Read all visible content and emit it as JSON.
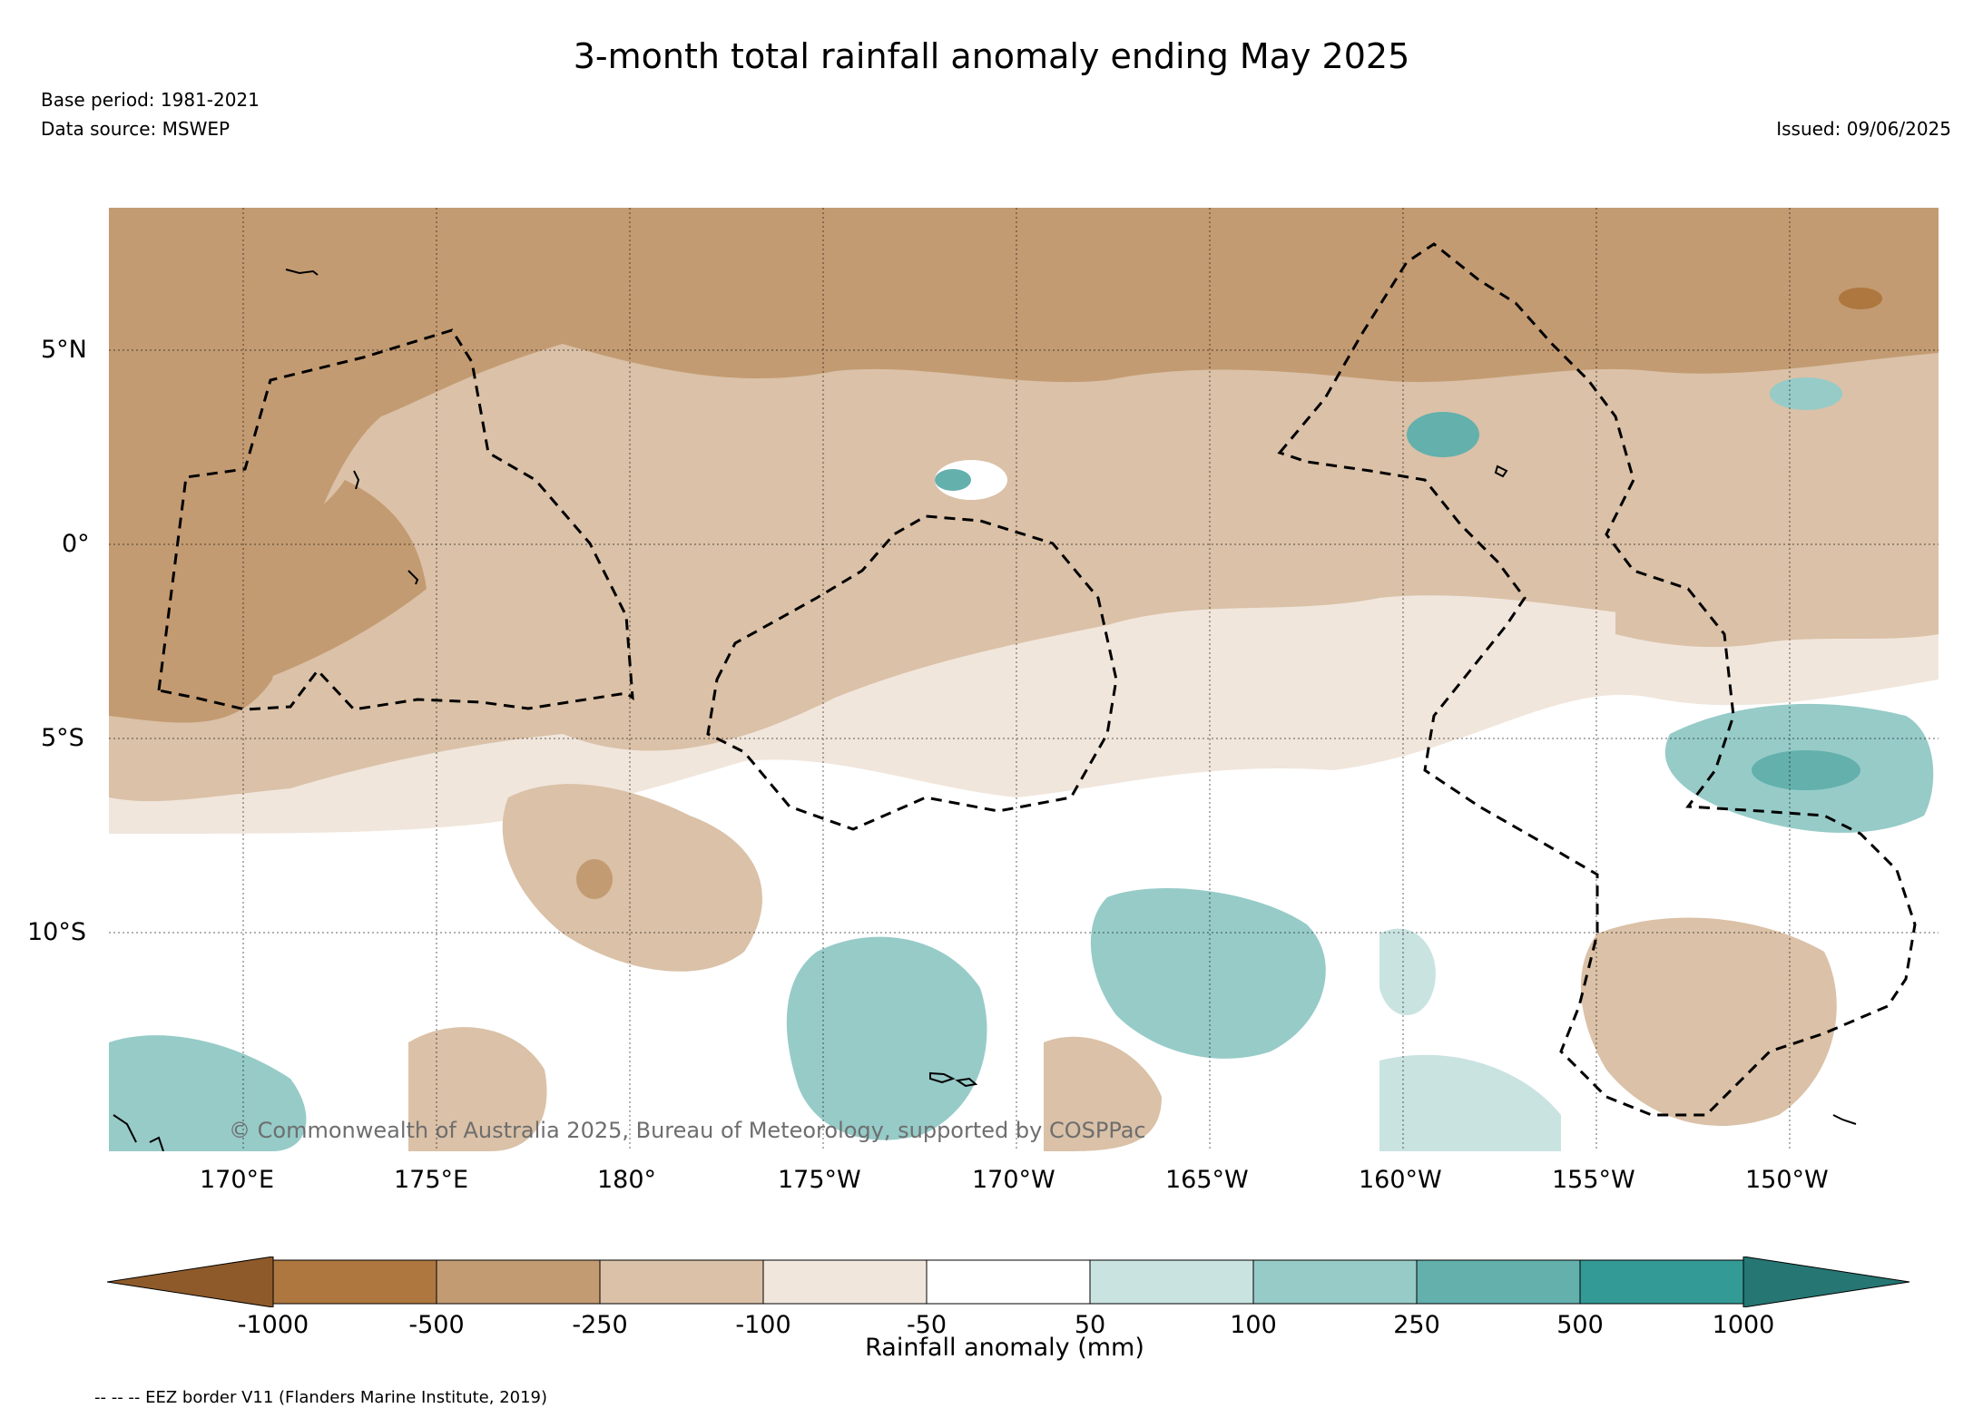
{
  "title": "3-month total rainfall anomaly ending May 2025",
  "base_period": "Base period: 1981-2021",
  "data_source": "Data source: MSWEP",
  "issued": "Issued: 09/06/2025",
  "credit": "© Commonwealth of Australia 2025, Bureau of Meteorology, supported by COSPPac",
  "map": {
    "lat_labels": [
      "5°N",
      "0°",
      "5°S",
      "10°S"
    ],
    "lon_labels": [
      "170°E",
      "175°E",
      "180°",
      "175°W",
      "170°W",
      "165°W",
      "160°W",
      "155°W",
      "150°W"
    ]
  },
  "colorbar": {
    "title": "Rainfall anomaly (mm)",
    "labels": [
      "-1000",
      "-500",
      "-250",
      "-100",
      "-50",
      "50",
      "100",
      "250",
      "500",
      "1000"
    ],
    "colors": [
      "#8e5a2a",
      "#ae773f",
      "#c39b72",
      "#dac1a7",
      "#f1e6dc",
      "#ffffff",
      "#c9e3e1",
      "#96cbc8",
      "#63b0ad",
      "#339a96",
      "#267673"
    ]
  },
  "footnote": "-- -- -- EEZ border V11 (Flanders Marine Institute, 2019)"
}
